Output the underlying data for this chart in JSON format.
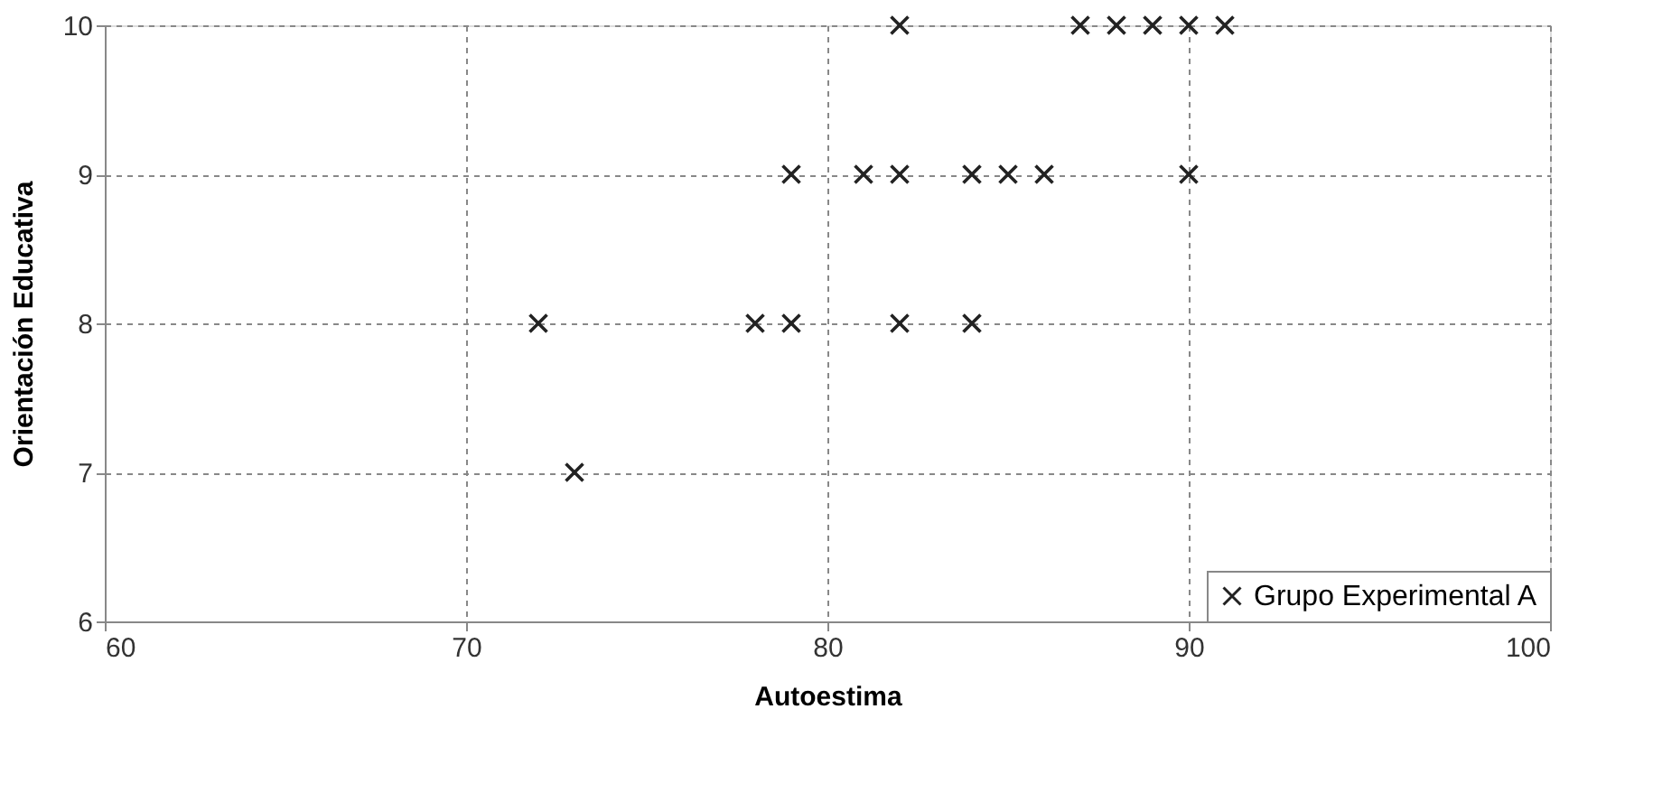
{
  "chart_data": {
    "type": "scatter",
    "xlabel": "Autoestima",
    "ylabel": "Orientación Educativa",
    "xlim": [
      60,
      100
    ],
    "xticks": [
      60,
      70,
      80,
      90,
      100
    ],
    "ylim": [
      6,
      10
    ],
    "yticks": [
      6,
      7,
      8,
      9,
      10
    ],
    "grid": true,
    "legend": "bottom right",
    "marker": "cross",
    "series": [
      {
        "name": "Grupo Experimental A",
        "color": "#222222",
        "x": [
          72,
          73,
          78,
          79,
          79,
          81,
          82,
          82,
          82,
          84,
          84,
          85,
          86,
          87,
          88,
          89,
          90,
          91,
          90
        ],
        "values": [
          8,
          7,
          8,
          8,
          9,
          9,
          9,
          10,
          8,
          8,
          9,
          9,
          9,
          10,
          10,
          10,
          10,
          10,
          9
        ]
      }
    ]
  }
}
